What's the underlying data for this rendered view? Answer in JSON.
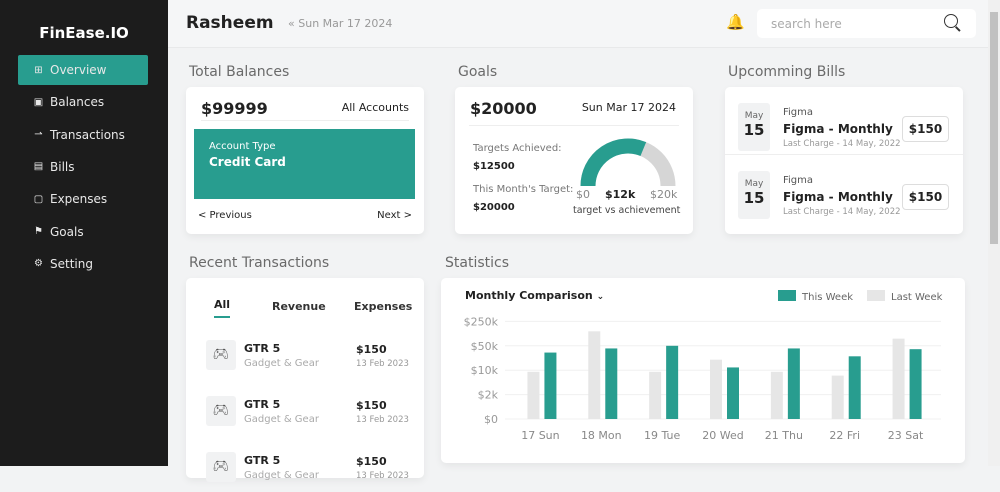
{
  "app": {
    "name": "FinEase.IO"
  },
  "sidebar": {
    "items": [
      {
        "label": "Overview",
        "icon": "grid-icon",
        "active": true
      },
      {
        "label": "Balances",
        "icon": "wallet-icon"
      },
      {
        "label": "Transactions",
        "icon": "transfer-icon"
      },
      {
        "label": "Bills",
        "icon": "bill-icon"
      },
      {
        "label": "Expenses",
        "icon": "cash-icon"
      },
      {
        "label": "Goals",
        "icon": "flag-icon"
      },
      {
        "label": "Setting",
        "icon": "gear-icon"
      }
    ]
  },
  "header": {
    "user": "Rasheem",
    "date": "Sun Mar 17 2024",
    "search_placeholder": "search here"
  },
  "balances": {
    "title": "Total Balances",
    "amount": "$99999",
    "accounts_link": "All Accounts",
    "account_type_label": "Account Type",
    "account_type": "Credit Card",
    "prev": "< Previous",
    "next": "Next >"
  },
  "goals": {
    "title": "Goals",
    "amount": "$20000",
    "date": "Sun Mar 17 2024",
    "achieved_label": "Targets Achieved:",
    "achieved": "$12500",
    "target_label": "This Month's Target:",
    "target": "$20000",
    "gauge_min": "$0",
    "gauge_value": "$12k",
    "gauge_max": "$20k",
    "gauge_caption": "target vs achievement",
    "gauge_fraction": 0.625,
    "accent": "#289d8f"
  },
  "bills": {
    "title": "Upcomming Bills",
    "items": [
      {
        "month": "May",
        "day": "15",
        "vendor": "Figma",
        "name": "Figma - Monthly",
        "last": "Last Charge - 14 May, 2022",
        "amount": "$150"
      },
      {
        "month": "May",
        "day": "15",
        "vendor": "Figma",
        "name": "Figma - Monthly",
        "last": "Last Charge - 14 May, 2022",
        "amount": "$150"
      }
    ]
  },
  "transactions": {
    "title": "Recent Transactions",
    "tabs": [
      "All",
      "Revenue",
      "Expenses"
    ],
    "active_tab": "All",
    "items": [
      {
        "name": "GTR 5",
        "category": "Gadget & Gear",
        "amount": "$150",
        "date": "13 Feb 2023",
        "icon": "gamepad-icon"
      },
      {
        "name": "GTR 5",
        "category": "Gadget & Gear",
        "amount": "$150",
        "date": "13 Feb 2023",
        "icon": "gamepad-icon"
      },
      {
        "name": "GTR 5",
        "category": "Gadget & Gear",
        "amount": "$150",
        "date": "13 Feb 2023",
        "icon": "gamepad-icon"
      }
    ]
  },
  "statistics": {
    "title": "Statistics",
    "dropdown": "Monthly Comparison"
  },
  "chart_data": {
    "type": "bar",
    "title": "Monthly Comparison",
    "categories": [
      "17 Sun",
      "18 Mon",
      "19 Tue",
      "20 Wed",
      "21 Thu",
      "22 Fri",
      "23 Sat"
    ],
    "yticks": [
      "$0",
      "$2k",
      "$10k",
      "$50k",
      "$250k"
    ],
    "ytick_values": [
      0,
      2000,
      10000,
      50000,
      250000
    ],
    "series": [
      {
        "name": "Last Week",
        "color": "#e6e6e6",
        "values": [
          9000,
          130000,
          9000,
          20000,
          9000,
          7000,
          80000
        ]
      },
      {
        "name": "This Week",
        "color": "#289d8f",
        "values": [
          32000,
          42000,
          50000,
          12000,
          42000,
          25000,
          40000
        ]
      }
    ],
    "legend": "top-right",
    "grid": true
  }
}
